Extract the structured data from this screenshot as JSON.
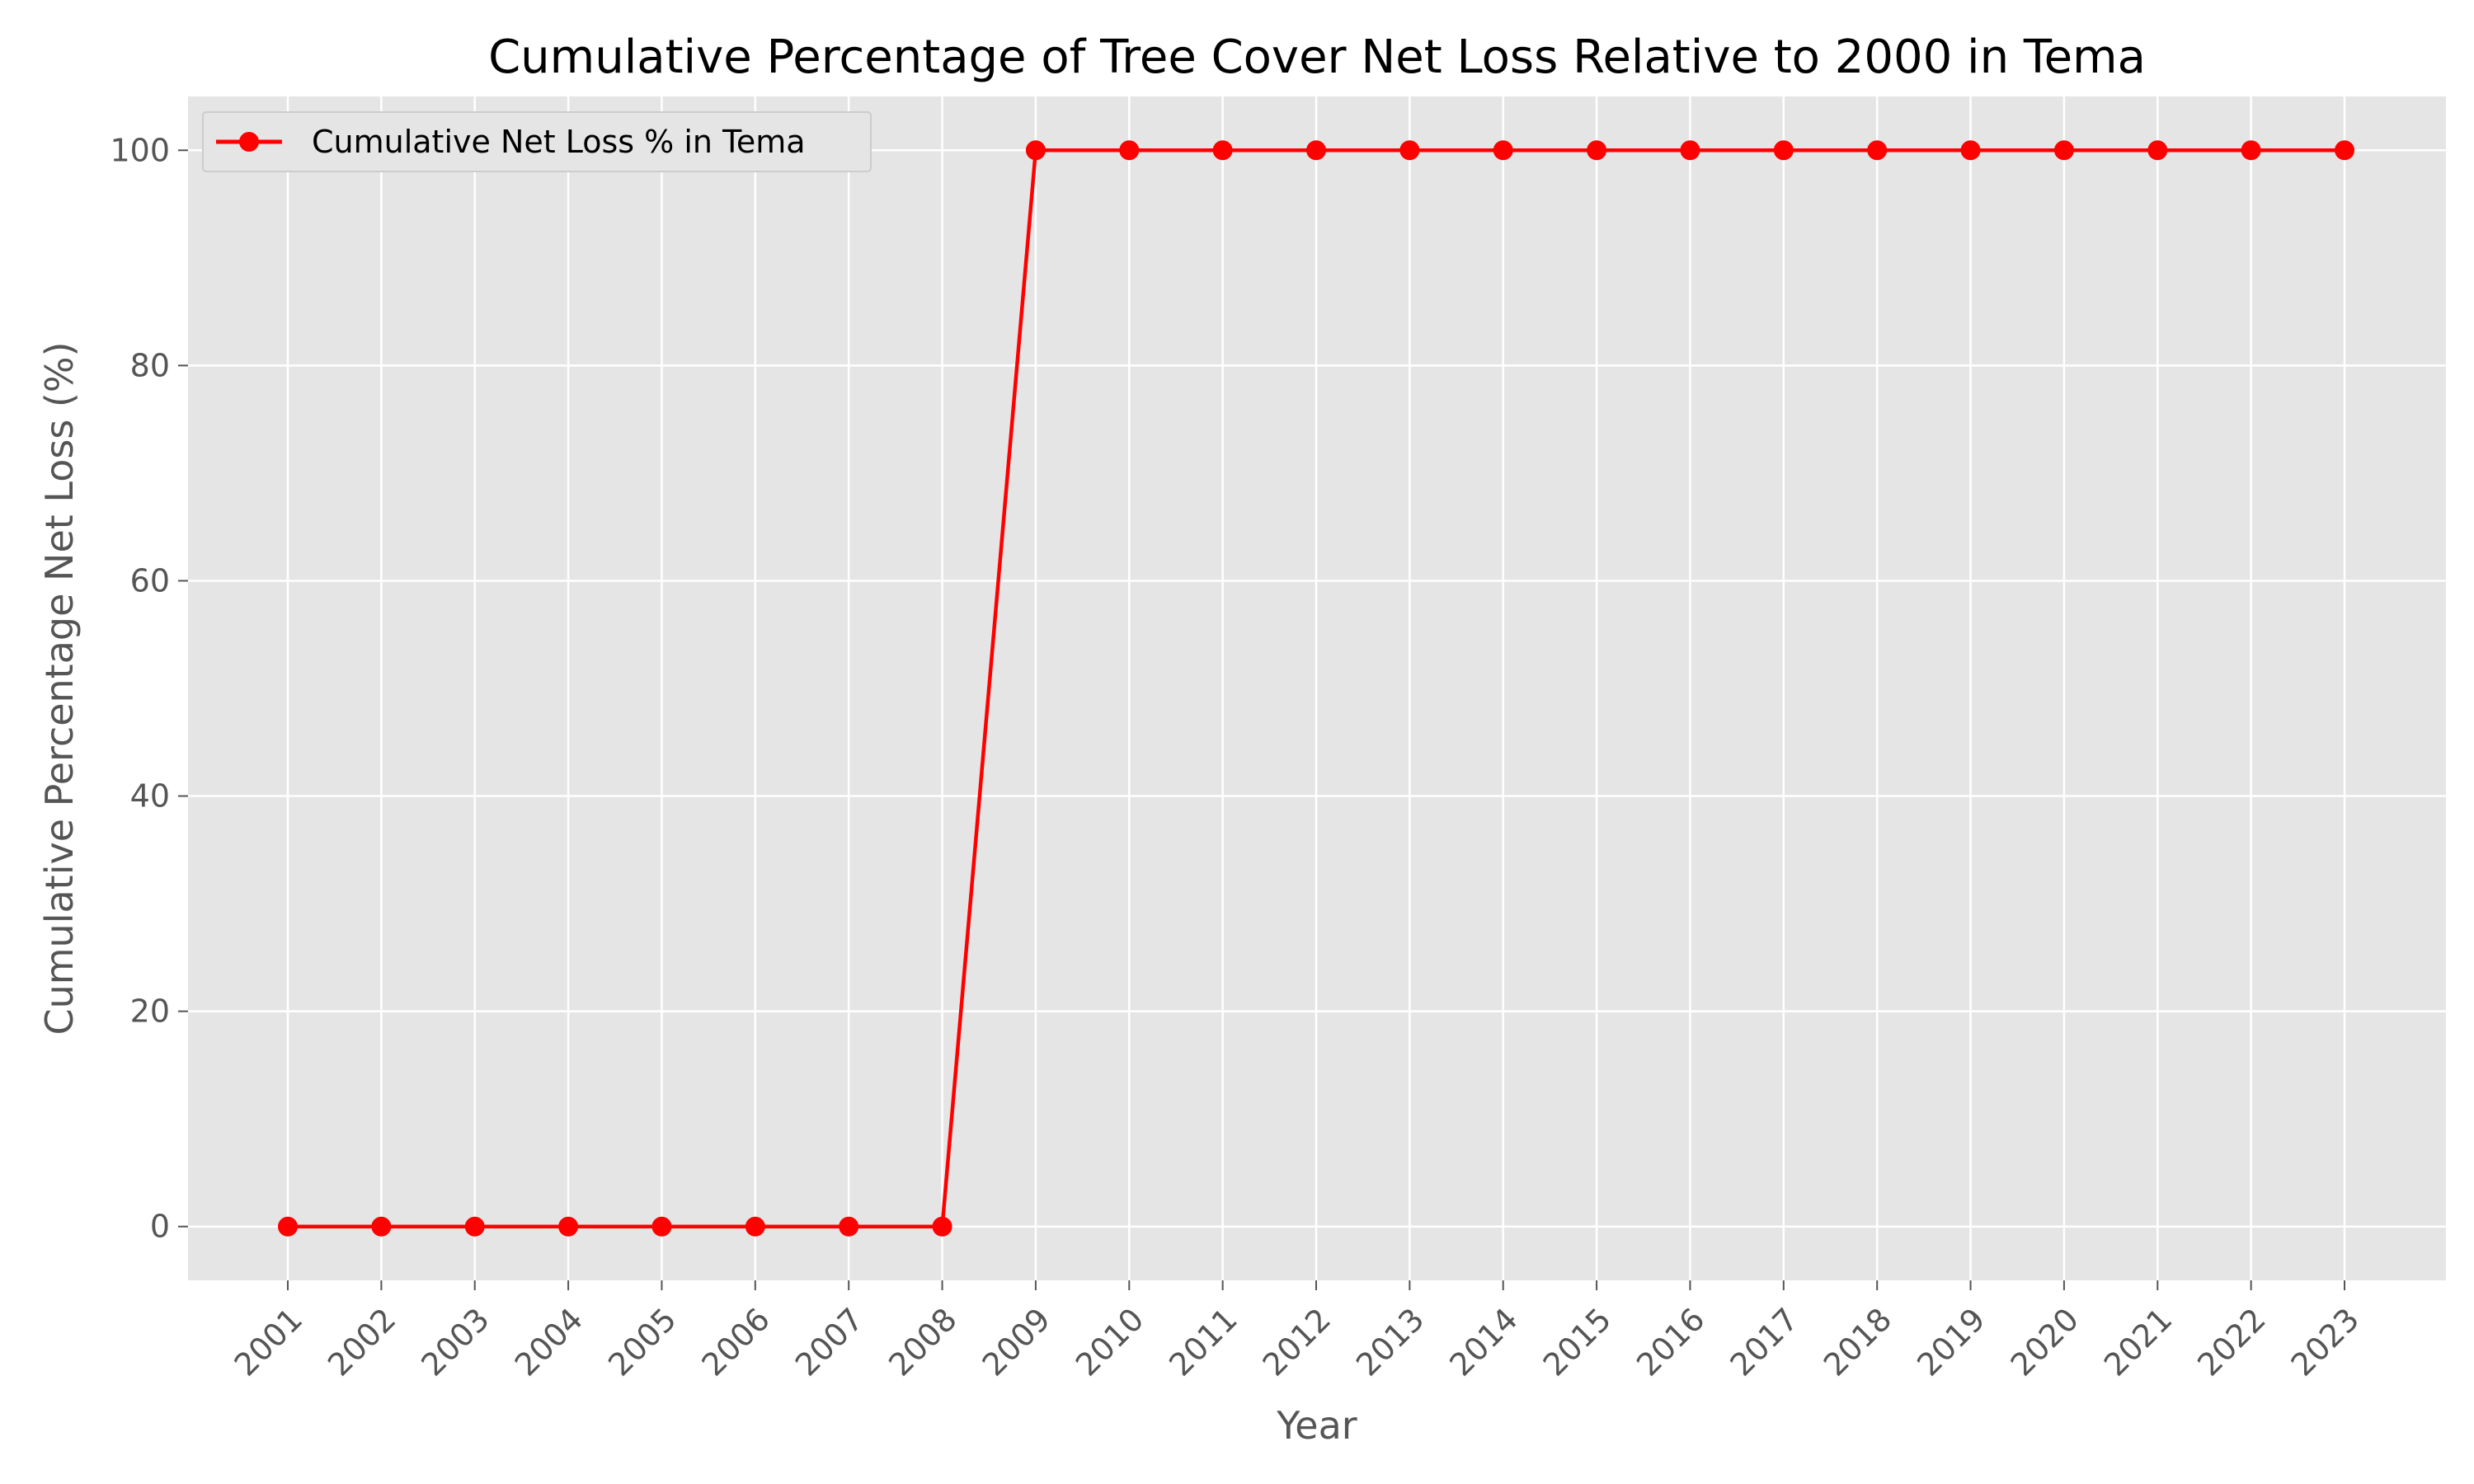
{
  "chart_data": {
    "type": "line",
    "title": "Cumulative Percentage of Tree Cover Net Loss Relative to 2000 in Tema",
    "xlabel": "Year",
    "ylabel": "Cumulative Percentage Net Loss (%)",
    "categories": [
      "2001",
      "2002",
      "2003",
      "2004",
      "2005",
      "2006",
      "2007",
      "2008",
      "2009",
      "2010",
      "2011",
      "2012",
      "2013",
      "2014",
      "2015",
      "2016",
      "2017",
      "2018",
      "2019",
      "2020",
      "2021",
      "2022",
      "2023"
    ],
    "series": [
      {
        "name": "Cumulative Net Loss % in Tema",
        "color": "#ff0000",
        "marker": "circle",
        "values": [
          0,
          0,
          0,
          0,
          0,
          0,
          0,
          0,
          100,
          100,
          100,
          100,
          100,
          100,
          100,
          100,
          100,
          100,
          100,
          100,
          100,
          100,
          100
        ]
      }
    ],
    "ylim": [
      -5,
      105
    ],
    "yticks": [
      0,
      20,
      40,
      60,
      80,
      100
    ],
    "grid": true,
    "legend_position": "top-left",
    "plot_background": "#e5e5e5"
  }
}
